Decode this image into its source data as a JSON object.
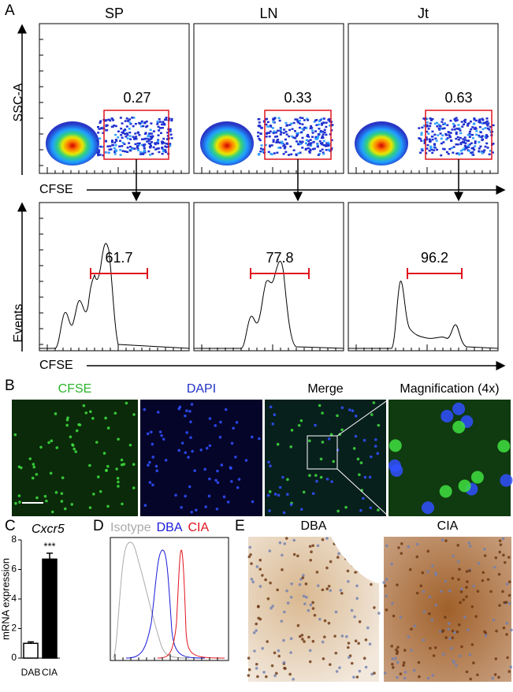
{
  "panel_a": {
    "label": "A",
    "columns": [
      "SP",
      "LN",
      "Jt"
    ],
    "y_label_top": "SSC-A",
    "x_label_top": "CFSE",
    "gates": [
      0.27,
      0.33,
      0.63
    ],
    "y_label_bottom": "Events",
    "x_label_bottom": "CFSE",
    "histogram_gates": [
      61.7,
      77.8,
      96.2
    ]
  },
  "panel_b": {
    "label": "B",
    "titles": [
      "CFSE",
      "DAPI",
      "Merge",
      "Magnification (4x)"
    ]
  },
  "panel_c": {
    "label": "C",
    "gene": "Cxcr5",
    "y_label": "mRNA expression",
    "categories": [
      "DAB",
      "CIA"
    ],
    "values": [
      1.0,
      6.7
    ],
    "errors": [
      0.1,
      0.4
    ],
    "colors": [
      "#ffffff",
      "#000000"
    ],
    "ylim": [
      0,
      8
    ],
    "yticks": [
      0,
      2,
      4,
      6,
      8
    ],
    "annotation": "***"
  },
  "panel_d": {
    "label": "D",
    "legend": [
      {
        "name": "Isotype",
        "color": "#aaaaaa"
      },
      {
        "name": "DBA",
        "color": "#1a1adb"
      },
      {
        "name": "CIA",
        "color": "#e0141e"
      }
    ]
  },
  "panel_e": {
    "label": "E",
    "titles": [
      "DBA",
      "CIA"
    ]
  }
}
